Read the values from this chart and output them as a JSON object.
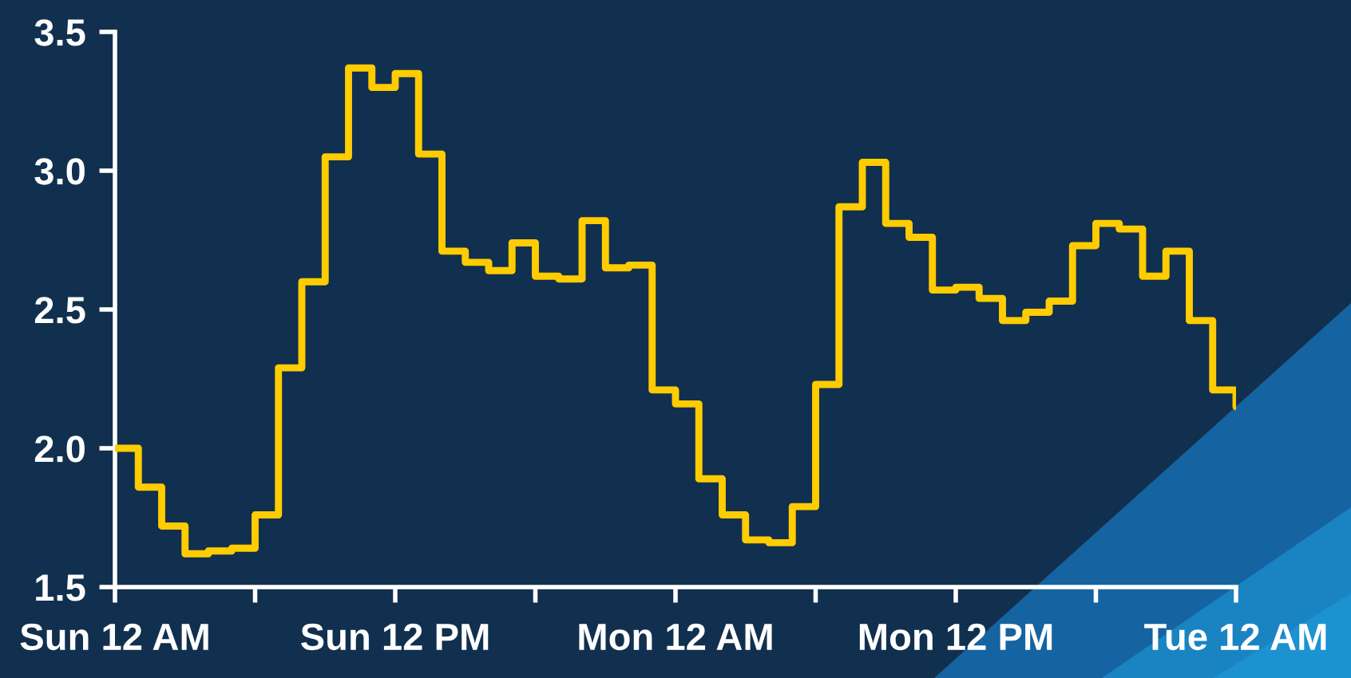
{
  "chart_data": {
    "type": "step",
    "categories": [
      "Sun 12 AM",
      null,
      null,
      null,
      null,
      null,
      null,
      null,
      null,
      null,
      null,
      null,
      "Sun 12 PM",
      null,
      null,
      null,
      null,
      null,
      null,
      null,
      null,
      null,
      null,
      null,
      "Mon 12 AM",
      null,
      null,
      null,
      null,
      null,
      null,
      null,
      null,
      null,
      null,
      null,
      "Mon 12 PM",
      null,
      null,
      null,
      null,
      null,
      null,
      null,
      null,
      null,
      null,
      null,
      "Tue 12 AM"
    ],
    "series": [
      {
        "color": "#ffcc00",
        "values": [
          2.0,
          1.86,
          1.72,
          1.62,
          1.63,
          1.64,
          1.76,
          2.29,
          2.6,
          3.05,
          3.37,
          3.3,
          3.35,
          3.06,
          2.71,
          2.67,
          2.64,
          2.74,
          2.62,
          2.61,
          2.82,
          2.65,
          2.66,
          2.21,
          2.16,
          1.89,
          1.76,
          1.67,
          1.66,
          1.79,
          2.23,
          2.87,
          3.03,
          2.81,
          2.76,
          2.57,
          2.58,
          2.54,
          2.46,
          2.49,
          2.53,
          2.73,
          2.81,
          2.79,
          2.62,
          2.71,
          2.46,
          2.21,
          2.15
        ]
      }
    ],
    "ylim": [
      1.5,
      3.5
    ],
    "yticks": [
      1.5,
      {
        "value": 2,
        "label": "2.0"
      },
      2.5,
      {
        "value": 3,
        "label": "3.0"
      },
      3.5
    ],
    "grid": false,
    "line_style": "solid"
  }
}
